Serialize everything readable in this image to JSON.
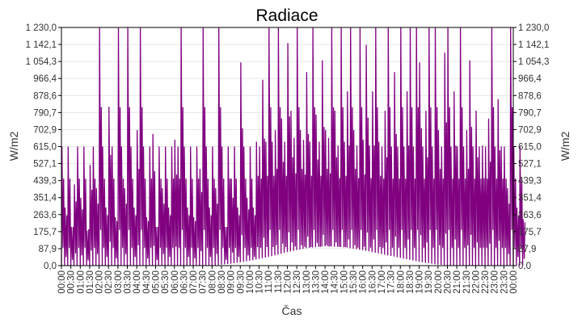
{
  "chart_data": {
    "type": "line",
    "title": "Radiace",
    "xlabel": "Čas",
    "ylabel": "W/m2",
    "ylabel_right": "W/m2",
    "ylim": [
      0,
      1230
    ],
    "grid": true,
    "line_color": "#800080",
    "yticks": [
      "0,0",
      "87,9",
      "175,7",
      "263,6",
      "351,4",
      "439,3",
      "527,1",
      "615,0",
      "702,9",
      "790,7",
      "878,6",
      "966,4",
      "1 054,3",
      "1 142,1",
      "1 230,0"
    ],
    "xticks": [
      "00:00",
      "00:30",
      "01:00",
      "01:30",
      "02:00",
      "02:30",
      "03:00",
      "03:30",
      "04:00",
      "04:30",
      "05:00",
      "05:30",
      "06:00",
      "06:30",
      "07:00",
      "07:30",
      "08:00",
      "08:30",
      "09:00",
      "09:30",
      "10:00",
      "10:30",
      "11:00",
      "11:30",
      "12:00",
      "12:30",
      "13:00",
      "13:30",
      "14:00",
      "14:30",
      "15:00",
      "15:30",
      "16:00",
      "16:30",
      "17:00",
      "17:30",
      "18:00",
      "18:30",
      "19:00",
      "19:30",
      "20:00",
      "20:30",
      "21:00",
      "21:30",
      "22:00",
      "22:30",
      "23:00",
      "23:30",
      "00:00"
    ],
    "sample_interval_minutes": 10,
    "values": [
      615,
      300,
      615,
      200,
      420,
      615,
      350,
      615,
      180,
      520,
      615,
      400,
      1230,
      615,
      300,
      820,
      615,
      250,
      1230,
      615,
      400,
      1230,
      615,
      300,
      700,
      1230,
      615,
      250,
      615,
      680,
      200,
      615,
      400,
      615,
      300,
      615,
      650,
      615,
      1230,
      615,
      300,
      615,
      250,
      615,
      500,
      1230,
      615,
      300,
      615,
      400,
      1230,
      615,
      200,
      615,
      450,
      615,
      300,
      1050,
      615,
      350,
      615,
      300,
      640,
      615,
      960,
      640,
      1230,
      640,
      700,
      1230,
      760,
      640,
      1150,
      800,
      660,
      1230,
      700,
      650,
      1000,
      640,
      1230,
      780,
      640,
      1060,
      700,
      660,
      1230,
      800,
      620,
      1230,
      640,
      900,
      1230,
      700,
      620,
      1230,
      650,
      1140,
      620,
      900,
      1230,
      640,
      615,
      800,
      1230,
      615,
      1000,
      615,
      1230,
      615,
      900,
      1230,
      615,
      1230,
      1050,
      615,
      800,
      1230,
      615,
      1230,
      700,
      615,
      1100,
      1230,
      615,
      900,
      615,
      1230,
      615,
      700,
      1060,
      615,
      800,
      615,
      620,
      615,
      760,
      1230,
      615,
      860,
      615,
      615,
      400,
      1230,
      615,
      300,
      615,
      240
    ],
    "baseline": [
      0,
      0,
      0,
      0,
      0,
      0,
      0,
      0,
      0,
      10,
      25,
      45,
      70,
      90,
      100,
      95,
      80,
      60,
      40,
      20,
      5,
      0,
      0,
      0,
      0
    ],
    "baseline_interval_minutes": 60
  }
}
